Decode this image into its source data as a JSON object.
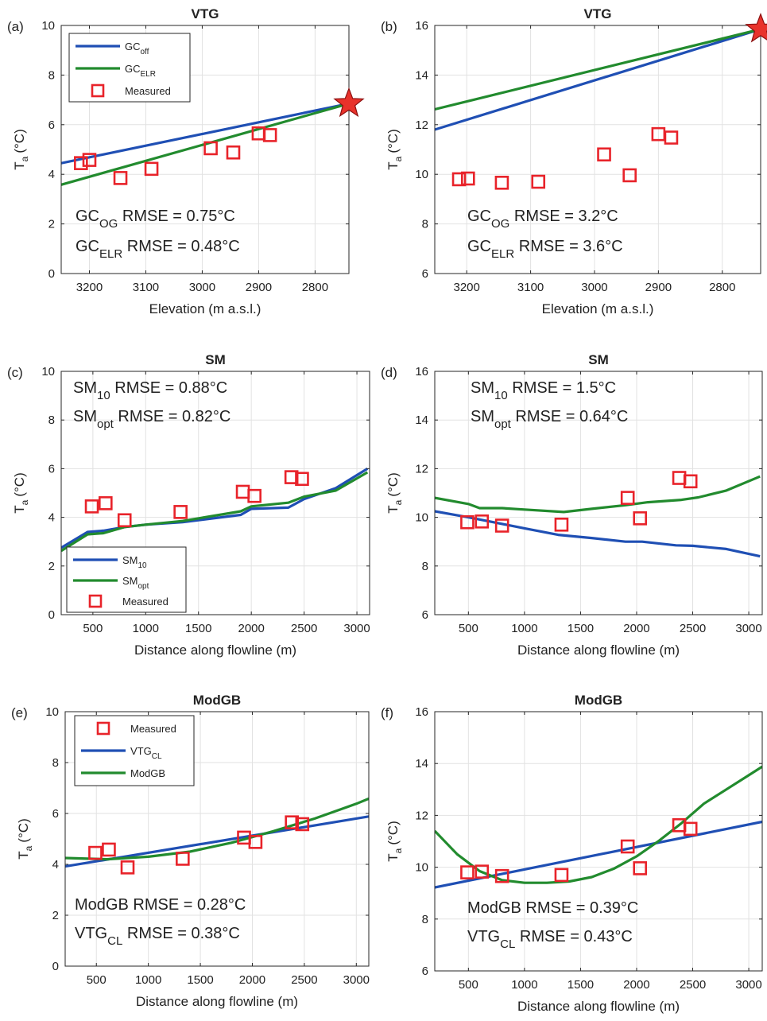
{
  "colors": {
    "blue": "#1f4fb4",
    "green": "#228b2e",
    "measured": "#e8232a",
    "star_fill": "#e8322b",
    "star_stroke": "#8b1010"
  },
  "chart_data": [
    {
      "id": "a",
      "letter": "(a)",
      "title": "VTG",
      "type": "line",
      "xlabel": "Elevation (m a.s.l.)",
      "ylabel_main": "T",
      "ylabel_sub": "a",
      "ylabel_unit": "(°C)",
      "xlim": [
        3250,
        2740
      ],
      "ylim": [
        0,
        10
      ],
      "xticks": [
        3200,
        3100,
        3000,
        2900,
        2800
      ],
      "yticks": [
        0,
        2,
        4,
        6,
        8,
        10
      ],
      "series": [
        {
          "label_main": "GC",
          "label_sub": "off",
          "kind": "line",
          "color": "blue",
          "points": [
            [
              3250,
              4.45
            ],
            [
              2740,
              6.85
            ]
          ]
        },
        {
          "label_main": "GC",
          "label_sub": "ELR",
          "kind": "line",
          "color": "green",
          "points": [
            [
              3250,
              3.58
            ],
            [
              2740,
              6.85
            ]
          ]
        },
        {
          "label_main": "Measured",
          "kind": "markers",
          "color": "measured",
          "points": [
            [
              3215,
              4.45
            ],
            [
              3200,
              4.58
            ],
            [
              3145,
              3.85
            ],
            [
              3090,
              4.22
            ],
            [
              2985,
              5.05
            ],
            [
              2945,
              4.88
            ],
            [
              2900,
              5.65
            ],
            [
              2880,
              5.58
            ]
          ]
        }
      ],
      "star": [
        2740,
        6.85
      ],
      "legend": {
        "placement": "top-left"
      },
      "stats": [
        {
          "main": "GC",
          "sub": "OG",
          "text": " RMSE = 0.75°C"
        },
        {
          "main": "GC",
          "sub": "ELR",
          "text": " RMSE = 0.48°C"
        }
      ],
      "stats_placement": "bottom-left"
    },
    {
      "id": "b",
      "letter": "(b)",
      "title": "VTG",
      "type": "line",
      "xlabel": "Elevation (m a.s.l.)",
      "ylabel_main": "T",
      "ylabel_sub": "a",
      "ylabel_unit": "(°C)",
      "xlim": [
        3250,
        2740
      ],
      "ylim": [
        6,
        16
      ],
      "xticks": [
        3200,
        3100,
        3000,
        2900,
        2800
      ],
      "yticks": [
        6,
        8,
        10,
        12,
        14,
        16
      ],
      "series": [
        {
          "kind": "line",
          "color": "blue",
          "points": [
            [
              3250,
              11.8
            ],
            [
              2740,
              15.85
            ]
          ]
        },
        {
          "kind": "line",
          "color": "green",
          "points": [
            [
              3250,
              12.62
            ],
            [
              2740,
              15.85
            ]
          ]
        },
        {
          "kind": "markers",
          "color": "measured",
          "points": [
            [
              3212,
              9.8
            ],
            [
              3198,
              9.83
            ],
            [
              3145,
              9.66
            ],
            [
              3088,
              9.7
            ],
            [
              2985,
              10.8
            ],
            [
              2945,
              9.96
            ],
            [
              2900,
              11.62
            ],
            [
              2880,
              11.48
            ]
          ]
        }
      ],
      "star": [
        2740,
        15.85
      ],
      "stats": [
        {
          "main": "GC",
          "sub": "OG",
          "text": " RMSE = 3.2°C"
        },
        {
          "main": "GC",
          "sub": "ELR",
          "text": " RMSE = 3.6°C"
        }
      ],
      "stats_placement": "bottom-left"
    },
    {
      "id": "c",
      "letter": "(c)",
      "title": "SM",
      "type": "line",
      "xlabel": "Distance along flowline (m)",
      "ylabel_main": "T",
      "ylabel_sub": "a",
      "ylabel_unit": "(°C)",
      "xlim": [
        200,
        3120
      ],
      "ylim": [
        0,
        10
      ],
      "xticks": [
        500,
        1000,
        1500,
        2000,
        2500,
        3000
      ],
      "yticks": [
        0,
        2,
        4,
        6,
        8,
        10
      ],
      "series": [
        {
          "label_main": "SM",
          "label_sub": "10",
          "kind": "line",
          "color": "blue",
          "points": [
            [
              200,
              2.75
            ],
            [
              450,
              3.4
            ],
            [
              600,
              3.45
            ],
            [
              800,
              3.6
            ],
            [
              1000,
              3.7
            ],
            [
              1350,
              3.8
            ],
            [
              1900,
              4.1
            ],
            [
              2000,
              4.35
            ],
            [
              2350,
              4.4
            ],
            [
              2500,
              4.75
            ],
            [
              2800,
              5.2
            ],
            [
              3100,
              6.0
            ]
          ]
        },
        {
          "label_main": "SM",
          "label_sub": "opt",
          "kind": "line",
          "color": "green",
          "points": [
            [
              200,
              2.62
            ],
            [
              450,
              3.3
            ],
            [
              600,
              3.35
            ],
            [
              800,
              3.6
            ],
            [
              1000,
              3.7
            ],
            [
              1350,
              3.85
            ],
            [
              1900,
              4.25
            ],
            [
              2000,
              4.45
            ],
            [
              2350,
              4.6
            ],
            [
              2500,
              4.85
            ],
            [
              2800,
              5.1
            ],
            [
              3100,
              5.85
            ]
          ]
        },
        {
          "label_main": "Measured",
          "kind": "markers",
          "color": "measured",
          "points": [
            [
              490,
              4.45
            ],
            [
              620,
              4.58
            ],
            [
              800,
              3.88
            ],
            [
              1330,
              4.22
            ],
            [
              1920,
              5.05
            ],
            [
              2030,
              4.88
            ],
            [
              2380,
              5.65
            ],
            [
              2480,
              5.58
            ]
          ]
        }
      ],
      "legend": {
        "placement": "bottom-left"
      },
      "stats": [
        {
          "main": "SM",
          "sub": "10",
          "text": " RMSE = 0.88°C"
        },
        {
          "main": "SM",
          "sub": "opt",
          "text": " RMSE = 0.82°C"
        }
      ],
      "stats_placement": "top-left"
    },
    {
      "id": "d",
      "letter": "(d)",
      "title": "SM",
      "type": "line",
      "xlabel": "Distance along flowline (m)",
      "ylabel_main": "T",
      "ylabel_sub": "a",
      "ylabel_unit": "(°C)",
      "xlim": [
        200,
        3120
      ],
      "ylim": [
        6,
        16
      ],
      "xticks": [
        500,
        1000,
        1500,
        2000,
        2500,
        3000
      ],
      "yticks": [
        6,
        8,
        10,
        12,
        14,
        16
      ],
      "series": [
        {
          "kind": "line",
          "color": "blue",
          "points": [
            [
              200,
              10.25
            ],
            [
              500,
              10.0
            ],
            [
              700,
              9.82
            ],
            [
              1000,
              9.55
            ],
            [
              1300,
              9.28
            ],
            [
              1600,
              9.15
            ],
            [
              1900,
              9.0
            ],
            [
              2050,
              9.0
            ],
            [
              2350,
              8.85
            ],
            [
              2500,
              8.83
            ],
            [
              2800,
              8.7
            ],
            [
              3100,
              8.4
            ]
          ]
        },
        {
          "kind": "line",
          "color": "green",
          "points": [
            [
              200,
              10.8
            ],
            [
              500,
              10.55
            ],
            [
              600,
              10.38
            ],
            [
              800,
              10.38
            ],
            [
              1000,
              10.32
            ],
            [
              1350,
              10.22
            ],
            [
              1600,
              10.35
            ],
            [
              1900,
              10.5
            ],
            [
              2100,
              10.62
            ],
            [
              2400,
              10.72
            ],
            [
              2550,
              10.82
            ],
            [
              2800,
              11.1
            ],
            [
              3100,
              11.68
            ]
          ]
        },
        {
          "kind": "markers",
          "color": "measured",
          "points": [
            [
              490,
              9.8
            ],
            [
              620,
              9.83
            ],
            [
              800,
              9.66
            ],
            [
              1330,
              9.7
            ],
            [
              1920,
              10.8
            ],
            [
              2030,
              9.96
            ],
            [
              2380,
              11.62
            ],
            [
              2480,
              11.48
            ]
          ]
        }
      ],
      "stats": [
        {
          "main": "SM",
          "sub": "10",
          "text": " RMSE = 1.5°C"
        },
        {
          "main": "SM",
          "sub": "opt",
          "text": " RMSE = 0.64°C"
        }
      ],
      "stats_placement": "top-left"
    },
    {
      "id": "e",
      "letter": "(e)",
      "title": "ModGB",
      "type": "line",
      "xlabel": "Distance along flowline (m)",
      "ylabel_main": "T",
      "ylabel_sub": "a",
      "ylabel_unit": "(°C)",
      "xlim": [
        200,
        3120
      ],
      "ylim": [
        0,
        10
      ],
      "xticks": [
        500,
        1000,
        1500,
        2000,
        2500,
        3000
      ],
      "yticks": [
        0,
        2,
        4,
        6,
        8,
        10
      ],
      "series": [
        {
          "label_main": "Measured",
          "kind": "markers",
          "color": "measured",
          "points": [
            [
              490,
              4.45
            ],
            [
              620,
              4.58
            ],
            [
              800,
              3.88
            ],
            [
              1330,
              4.22
            ],
            [
              1920,
              5.05
            ],
            [
              2030,
              4.88
            ],
            [
              2380,
              5.65
            ],
            [
              2480,
              5.58
            ]
          ]
        },
        {
          "label_main": "VTG",
          "label_sub": "CL",
          "kind": "line",
          "color": "blue",
          "points": [
            [
              200,
              3.92
            ],
            [
              3120,
              5.88
            ]
          ]
        },
        {
          "label_main": "ModGB",
          "kind": "line",
          "color": "green",
          "points": [
            [
              200,
              4.25
            ],
            [
              600,
              4.2
            ],
            [
              1000,
              4.3
            ],
            [
              1400,
              4.5
            ],
            [
              1800,
              4.85
            ],
            [
              2200,
              5.3
            ],
            [
              2600,
              5.8
            ],
            [
              3000,
              6.38
            ],
            [
              3120,
              6.58
            ]
          ]
        }
      ],
      "legend": {
        "placement": "top-left"
      },
      "stats": [
        {
          "main": "ModGB",
          "text": " RMSE = 0.28°C"
        },
        {
          "main": "VTG",
          "sub": "CL",
          "text": " RMSE = 0.38°C"
        }
      ],
      "stats_placement": "bottom-left"
    },
    {
      "id": "f",
      "letter": "(f)",
      "title": "ModGB",
      "type": "line",
      "xlabel": "Distance along flowline (m)",
      "ylabel_main": "T",
      "ylabel_sub": "a",
      "ylabel_unit": "(°C)",
      "xlim": [
        200,
        3120
      ],
      "ylim": [
        6,
        16
      ],
      "xticks": [
        500,
        1000,
        1500,
        2000,
        2500,
        3000
      ],
      "yticks": [
        6,
        8,
        10,
        12,
        14,
        16
      ],
      "series": [
        {
          "kind": "line",
          "color": "blue",
          "points": [
            [
              200,
              9.22
            ],
            [
              3120,
              11.75
            ]
          ]
        },
        {
          "kind": "line",
          "color": "green",
          "points": [
            [
              200,
              11.4
            ],
            [
              400,
              10.5
            ],
            [
              600,
              9.85
            ],
            [
              800,
              9.5
            ],
            [
              1000,
              9.4
            ],
            [
              1200,
              9.4
            ],
            [
              1400,
              9.45
            ],
            [
              1600,
              9.62
            ],
            [
              1800,
              9.95
            ],
            [
              2000,
              10.42
            ],
            [
              2200,
              11.02
            ],
            [
              2400,
              11.7
            ],
            [
              2600,
              12.45
            ],
            [
              2800,
              13.0
            ],
            [
              3000,
              13.55
            ],
            [
              3120,
              13.88
            ]
          ]
        },
        {
          "kind": "markers",
          "color": "measured",
          "points": [
            [
              490,
              9.8
            ],
            [
              620,
              9.83
            ],
            [
              800,
              9.66
            ],
            [
              1330,
              9.7
            ],
            [
              1920,
              10.8
            ],
            [
              2030,
              9.96
            ],
            [
              2380,
              11.62
            ],
            [
              2480,
              11.48
            ]
          ]
        }
      ],
      "stats": [
        {
          "main": "ModGB",
          "text": " RMSE = 0.39°C"
        },
        {
          "main": "VTG",
          "sub": "CL",
          "text": " RMSE = 0.43°C"
        }
      ],
      "stats_placement": "bottom-left"
    }
  ]
}
